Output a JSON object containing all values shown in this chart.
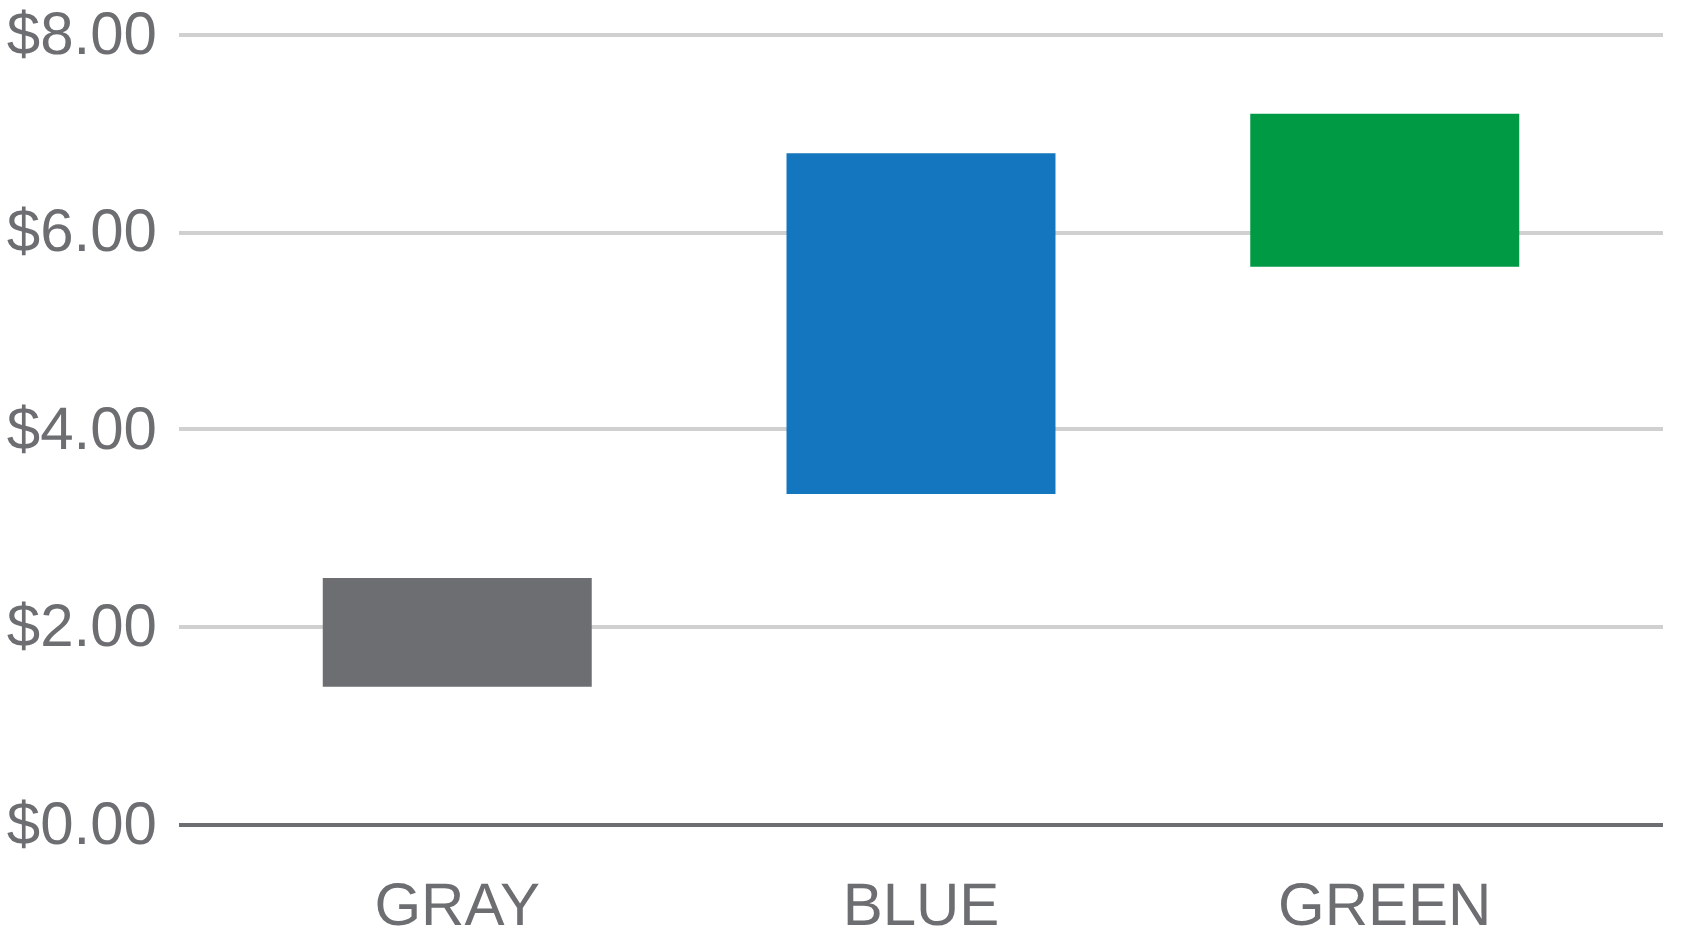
{
  "chart_data": {
    "type": "bar",
    "categories": [
      "GRAY",
      "BLUE",
      "GREEN"
    ],
    "values": [
      1.1,
      3.45,
      1.55
    ],
    "base": [
      1.4,
      3.35,
      5.65
    ],
    "colors": [
      "#6d6e71",
      "#1376be",
      "#009a44"
    ],
    "ylim": [
      0,
      8
    ],
    "yticks": [
      {
        "value": 0,
        "label": "$0.00"
      },
      {
        "value": 2,
        "label": "$2.00"
      },
      {
        "value": 4,
        "label": "$4.00"
      },
      {
        "value": 6,
        "label": "$6.00"
      },
      {
        "value": 8,
        "label": "$8.00"
      }
    ],
    "grid": "y"
  }
}
